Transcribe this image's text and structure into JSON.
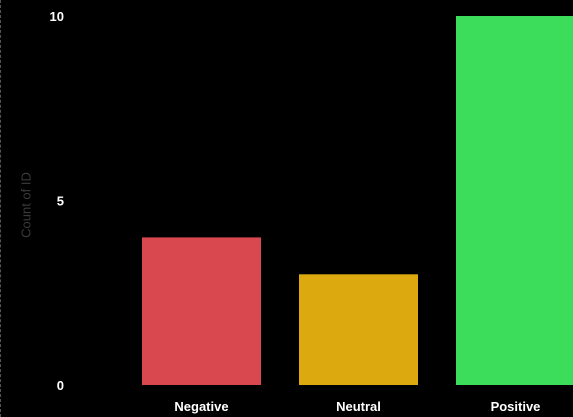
{
  "chart_data": {
    "type": "bar",
    "title": "",
    "xlabel": "",
    "ylabel": "Count of ID",
    "categories": [
      "Negative",
      "Neutral",
      "Positive"
    ],
    "values": [
      4,
      3,
      10
    ],
    "colors": [
      "#D9474F",
      "#DCAA0E",
      "#3CDD5A"
    ],
    "ylim": [
      0,
      10
    ],
    "yticks": [
      0,
      5,
      10
    ],
    "ytick_labels": [
      "0",
      "5",
      "10"
    ],
    "grid": false,
    "legend": "none"
  },
  "style": {
    "background": "#000000",
    "tick_label_color": "#FFFFFF",
    "axis_title_color": "#3A3A3A"
  }
}
